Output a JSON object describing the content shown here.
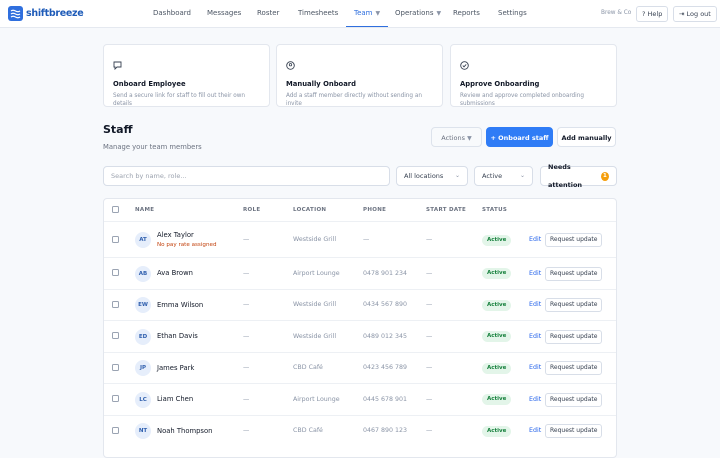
{
  "nav": {
    "brand": "shiftbreeze",
    "items": [
      "Dashboard",
      "Messages",
      "Roster",
      "Timesheets",
      "Team",
      "Operations",
      "Reports",
      "Settings"
    ],
    "org": "Brew & Co",
    "help": "Help",
    "logout": "Log out"
  },
  "cards": [
    {
      "title": "Onboard Employee",
      "description": "Send a secure link for staff to fill out their own details"
    },
    {
      "title": "Manually Onboard",
      "description": "Add a staff member directly without sending an invite"
    },
    {
      "title": "Approve Onboarding",
      "description": "Review and approve completed onboarding submissions"
    }
  ],
  "header": {
    "title": "Staff",
    "subtitle": "Manage your team members",
    "actions": "Actions",
    "onboard": "+ Onboard staff",
    "add": "Add manually"
  },
  "filters": {
    "search_placeholder": "Search by name, role...",
    "location": "All locations",
    "status": "Active",
    "attention": "Needs attention",
    "attention_count": 1
  },
  "table": {
    "columns": [
      "NAME",
      "ROLE",
      "LOCATION",
      "PHONE",
      "START DATE",
      "STATUS"
    ],
    "rows": [
      {
        "initials": "AT",
        "name": "Alex Taylor",
        "note": "No pay rate assigned",
        "role": "—",
        "location": "Westside Grill",
        "phone": "—",
        "start": "—",
        "status": "Active"
      },
      {
        "initials": "AB",
        "name": "Ava Brown",
        "role": "—",
        "location": "Airport Lounge",
        "phone": "0478 901 234",
        "start": "—",
        "status": "Active"
      },
      {
        "initials": "EW",
        "name": "Emma Wilson",
        "role": "—",
        "location": "Westside Grill",
        "phone": "0434 567 890",
        "start": "—",
        "status": "Active"
      },
      {
        "initials": "ED",
        "name": "Ethan Davis",
        "role": "—",
        "location": "Westside Grill",
        "phone": "0489 012 345",
        "start": "—",
        "status": "Active"
      },
      {
        "initials": "JP",
        "name": "James Park",
        "role": "—",
        "location": "CBD Café",
        "phone": "0423 456 789",
        "start": "—",
        "status": "Active"
      },
      {
        "initials": "LC",
        "name": "Liam Chen",
        "role": "—",
        "location": "Airport Lounge",
        "phone": "0445 678 901",
        "start": "—",
        "status": "Active"
      },
      {
        "initials": "NT",
        "name": "Noah Thompson",
        "role": "—",
        "location": "CBD Café",
        "phone": "0467 890 123",
        "start": "—",
        "status": "Active"
      }
    ],
    "edit": "Edit",
    "request": "Request update"
  }
}
